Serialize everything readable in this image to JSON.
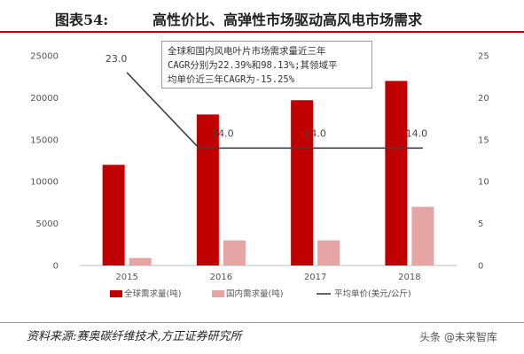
{
  "header": {
    "figure_label": "图表54:",
    "title": "高性价比、高弹性市场驱动高风电市场需求"
  },
  "annotation": {
    "lines": [
      "全球和国内风电叶片市场需求量近三年",
      "CAGR分别为22.39%和98.13%;其领域平",
      "均单价近三年CAGR为-15.25%"
    ]
  },
  "footer": {
    "source": "资料来源:赛奥碳纤维技术,方正证券研究所",
    "watermark": "头条 @未来智库"
  },
  "colors": {
    "global": "#c00000",
    "domestic": "#e6a5a5",
    "price": "#404040",
    "accent": "#c00000"
  },
  "chart_data": {
    "type": "bar",
    "categories": [
      "2015",
      "2016",
      "2017",
      "2018"
    ],
    "series": [
      {
        "name": "全球需求量(吨)",
        "type": "bar",
        "axis": "left",
        "color": "#c00000",
        "values": [
          12000,
          18000,
          19700,
          22000
        ]
      },
      {
        "name": "国内需求量(吨)",
        "type": "bar",
        "axis": "left",
        "color": "#e6a5a5",
        "values": [
          900,
          3000,
          3000,
          7000
        ]
      },
      {
        "name": "平均单价(美元/公斤)",
        "type": "line",
        "axis": "right",
        "color": "#404040",
        "values": [
          23.0,
          14.0,
          14.0,
          14.0
        ],
        "data_labels": [
          "23.0",
          "14.0",
          "14.0",
          "14.0"
        ]
      }
    ],
    "left_axis": {
      "min": 0,
      "max": 25000,
      "ticks": [
        "0",
        "5000",
        "10000",
        "15000",
        "20000",
        "25000"
      ]
    },
    "right_axis": {
      "min": 0,
      "max": 25,
      "ticks": [
        "0",
        "5",
        "10",
        "15",
        "20",
        "25"
      ]
    },
    "legend_position": "bottom",
    "grid": false
  }
}
